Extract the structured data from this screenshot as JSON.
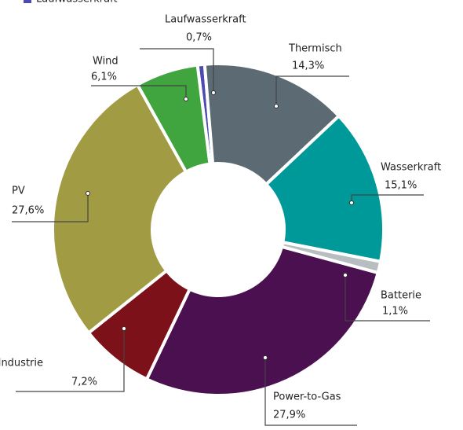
{
  "chart_data": {
    "type": "donut",
    "categories": [
      "Laufwasserkraft",
      "Thermisch",
      "Wasserkraft",
      "Batterie",
      "Power-to-Gas",
      "Industrie",
      "PV",
      "Wind"
    ],
    "values": [
      0.7,
      14.3,
      15.1,
      1.1,
      27.9,
      7.2,
      27.6,
      6.1
    ],
    "value_labels": [
      "0,7%",
      "14,3%",
      "15,1%",
      "1,1%",
      "27,9%",
      "7,2%",
      "27,6%",
      "6,1%"
    ],
    "colors": [
      "#4b4bb0",
      "#5b6a73",
      "#009999",
      "#b8bdc1",
      "#4a104f",
      "#7c1119",
      "#a19c43",
      "#40a43f"
    ]
  }
}
